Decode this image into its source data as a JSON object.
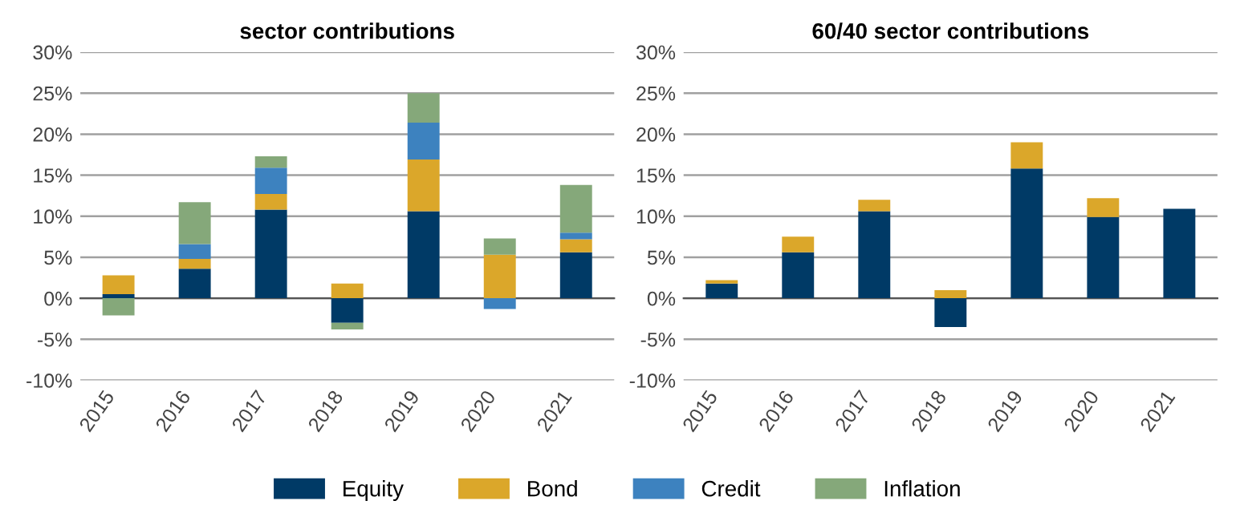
{
  "chart_data": [
    {
      "type": "bar",
      "title": "sector contributions",
      "stacked": true,
      "grid": "y",
      "legend": "bottom",
      "categories": [
        "2015",
        "2016",
        "2017",
        "2018",
        "2019",
        "2020",
        "2021"
      ],
      "ylim": [
        -10,
        30
      ],
      "yticks": [
        {
          "value": -10,
          "label": "-10%"
        },
        {
          "value": -5,
          "label": "-5%"
        },
        {
          "value": 0,
          "label": "0%"
        },
        {
          "value": 5,
          "label": "5%"
        },
        {
          "value": 10,
          "label": "10%"
        },
        {
          "value": 15,
          "label": "15%"
        },
        {
          "value": 20,
          "label": "20%"
        },
        {
          "value": 25,
          "label": "25%"
        },
        {
          "value": 30,
          "label": "30%"
        }
      ],
      "series": [
        {
          "name": "Equity",
          "color": "#003a66",
          "values": [
            0.5,
            3.6,
            10.8,
            -3.0,
            10.6,
            0,
            5.6
          ]
        },
        {
          "name": "Bond",
          "color": "#dba72a",
          "values": [
            2.3,
            1.2,
            1.9,
            1.8,
            6.3,
            5.3,
            1.6
          ]
        },
        {
          "name": "Credit",
          "color": "#3d82bf",
          "values": [
            0,
            1.8,
            3.2,
            0,
            4.5,
            -1.3,
            0.8
          ]
        },
        {
          "name": "Inflation",
          "color": "#85a87a",
          "values": [
            -2.1,
            5.1,
            1.4,
            -0.8,
            3.6,
            2.0,
            5.8
          ]
        }
      ]
    },
    {
      "type": "bar",
      "title": "60/40 sector contributions",
      "stacked": true,
      "grid": "y",
      "categories": [
        "2015",
        "2016",
        "2017",
        "2018",
        "2019",
        "2020",
        "2021"
      ],
      "ylim": [
        -10,
        30
      ],
      "yticks": [
        {
          "value": -10,
          "label": "-10%"
        },
        {
          "value": -5,
          "label": "-5%"
        },
        {
          "value": 0,
          "label": "0%"
        },
        {
          "value": 5,
          "label": "5%"
        },
        {
          "value": 10,
          "label": "10%"
        },
        {
          "value": 15,
          "label": "15%"
        },
        {
          "value": 20,
          "label": "20%"
        },
        {
          "value": 25,
          "label": "25%"
        },
        {
          "value": 30,
          "label": "30%"
        }
      ],
      "series": [
        {
          "name": "Equity",
          "color": "#003a66",
          "values": [
            1.8,
            5.6,
            10.6,
            -3.5,
            15.8,
            9.9,
            10.9
          ]
        },
        {
          "name": "Bond",
          "color": "#dba72a",
          "values": [
            0.4,
            1.9,
            1.4,
            1.0,
            3.2,
            2.3,
            0
          ]
        }
      ]
    }
  ]
}
